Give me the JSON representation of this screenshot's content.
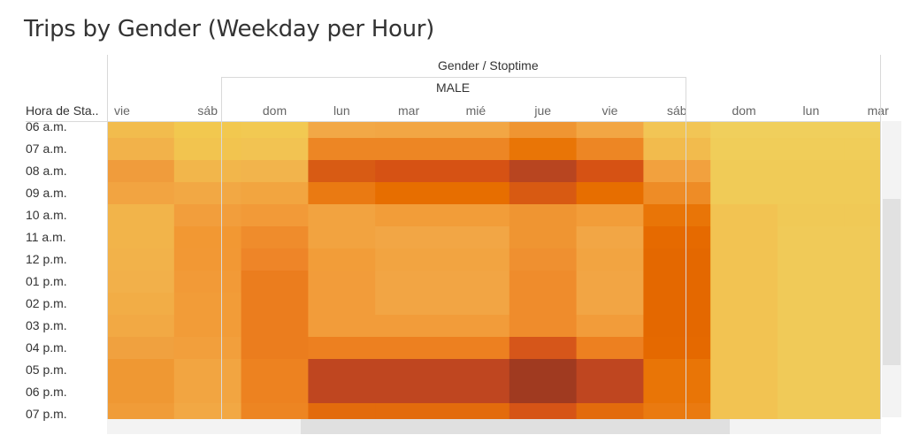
{
  "chart_data": {
    "type": "heatmap",
    "title": "Trips by Gender (Weekday per Hour)",
    "column_header": "Gender / Stoptime",
    "gender_label": "MALE",
    "row_header": "Hora de Sta..",
    "columns": [
      "vie",
      "sáb",
      "dom",
      "lun",
      "mar",
      "mié",
      "jue",
      "vie",
      "sáb",
      "dom",
      "lun",
      "mar"
    ],
    "rows": [
      "06 a.m.",
      "07 a.m.",
      "08 a.m.",
      "09 a.m.",
      "10 a.m.",
      "11 a.m.",
      "12 p.m.",
      "01 p.m.",
      "02 p.m.",
      "03 p.m.",
      "04 p.m.",
      "05 p.m.",
      "06 p.m.",
      "07 p.m."
    ],
    "colors": [
      [
        "#f2bc4d",
        "#f2c84f",
        "#f2c952",
        "#f2a846",
        "#f2a644",
        "#f2a644",
        "#ef9532",
        "#f2a644",
        "#f2c555",
        "#f0cf5c",
        "#f0cf5c",
        "#f0cf5c"
      ],
      [
        "#f2b24a",
        "#f2c44f",
        "#f2c352",
        "#ed8624",
        "#ed8624",
        "#ed8624",
        "#e97506",
        "#ed8624",
        "#f2bb4d",
        "#f0cd59",
        "#f0cd59",
        "#f0cd59"
      ],
      [
        "#f09c3c",
        "#f2b64b",
        "#f2b44c",
        "#d85b14",
        "#d65214",
        "#d65214",
        "#b84520",
        "#d65214",
        "#f2a13e",
        "#f0cb57",
        "#f0cb57",
        "#f0cb57"
      ],
      [
        "#f2a441",
        "#f2a844",
        "#f2a540",
        "#ea7a12",
        "#e76e00",
        "#e76e00",
        "#d85a12",
        "#e76e00",
        "#ee8c26",
        "#f0cb57",
        "#f0cb57",
        "#f0cb57"
      ],
      [
        "#f2b44a",
        "#f29e3c",
        "#f29a38",
        "#f2a340",
        "#f29d39",
        "#f29d39",
        "#ef9532",
        "#f29d39",
        "#e97507",
        "#f2c352",
        "#f0c956",
        "#f0c956"
      ],
      [
        "#f2b44a",
        "#f29833",
        "#ef8c2c",
        "#f2a340",
        "#f2a645",
        "#f2a645",
        "#ef9532",
        "#f2a645",
        "#e66a00",
        "#f2c352",
        "#f0ca58",
        "#f0ca58"
      ],
      [
        "#f2b24a",
        "#f29834",
        "#ee8528",
        "#f29d39",
        "#f2a441",
        "#f2a441",
        "#ef9030",
        "#f2a441",
        "#e46800",
        "#f2c352",
        "#f0ca58",
        "#f0ca58"
      ],
      [
        "#f2b04a",
        "#f29a37",
        "#eb7d1e",
        "#f29c3a",
        "#f2a544",
        "#f2a544",
        "#ef8c2c",
        "#f2a544",
        "#e46800",
        "#f2c352",
        "#f0ca58",
        "#f0ca58"
      ],
      [
        "#f2ad46",
        "#f29c38",
        "#eb7d1e",
        "#f29c3a",
        "#f2a544",
        "#f2a544",
        "#ef8c2c",
        "#f2a544",
        "#e46800",
        "#f2c352",
        "#f0ca58",
        "#f0ca58"
      ],
      [
        "#f2a944",
        "#f29c38",
        "#eb7d1e",
        "#f29c3a",
        "#f29c3a",
        "#f29c3a",
        "#ef8c2c",
        "#f29c3a",
        "#e46800",
        "#f2c352",
        "#f0ca58",
        "#f0ca58"
      ],
      [
        "#f0a13f",
        "#f29f3c",
        "#eb7d1e",
        "#ed8020",
        "#ed8020",
        "#ed8020",
        "#d6561a",
        "#ed8020",
        "#e56900",
        "#f2c352",
        "#f0ca58",
        "#f0ca58"
      ],
      [
        "#ef9833",
        "#f2a541",
        "#ed8220",
        "#bf4620",
        "#bf4620",
        "#bf4620",
        "#a03a20",
        "#bf4620",
        "#e97506",
        "#f2c352",
        "#f0ca58",
        "#f0ca58"
      ],
      [
        "#ef9833",
        "#f2a541",
        "#ed8220",
        "#bf4620",
        "#bf4620",
        "#bf4620",
        "#a03a20",
        "#bf4620",
        "#e97506",
        "#f2c352",
        "#f0ca58",
        "#f0ca58"
      ],
      [
        "#f09c38",
        "#f2a844",
        "#ed8522",
        "#e36b0c",
        "#e36b0c",
        "#e36b0c",
        "#d65416",
        "#e36b0c",
        "#ea7a10",
        "#f2c352",
        "#f0ca58",
        "#f0ca58"
      ]
    ]
  }
}
